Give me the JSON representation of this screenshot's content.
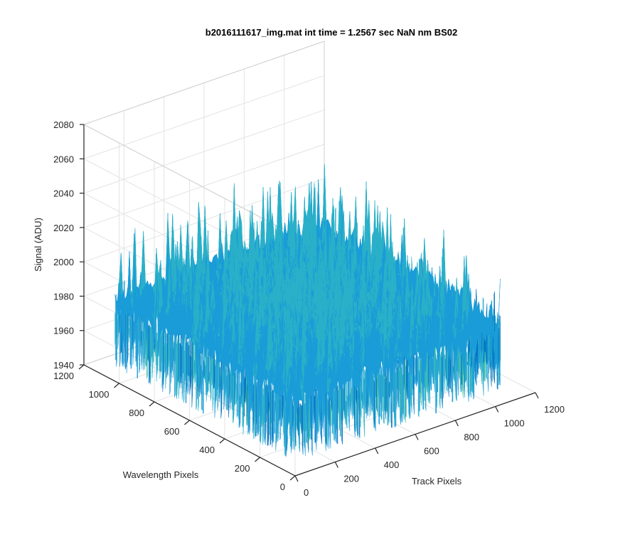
{
  "figure": {
    "title": "b2016111617_img.mat int time = 1.2567 sec  NaN nm BS02"
  },
  "chart_data": {
    "type": "surface",
    "title": "b2016111617_img.mat int time = 1.2567 sec  NaN nm BS02",
    "xlabel": "Track Pixels",
    "ylabel": "Wavelength Pixels",
    "zlabel": "Signal (ADU)",
    "xlim": [
      0,
      1200
    ],
    "ylim": [
      0,
      1200
    ],
    "zlim": [
      1940,
      2080
    ],
    "x_ticks": [
      0,
      200,
      400,
      600,
      800,
      1000,
      1200
    ],
    "y_ticks": [
      0,
      200,
      400,
      600,
      800,
      1000,
      1200
    ],
    "z_ticks": [
      1940,
      1960,
      1980,
      2000,
      2020,
      2040,
      2060,
      2080
    ],
    "x_tick_labels": [
      "0",
      "200",
      "400",
      "600",
      "800",
      "1000",
      "1200"
    ],
    "y_tick_labels": [
      "0",
      "200",
      "400",
      "600",
      "800",
      "1000",
      "1200"
    ],
    "z_tick_labels": [
      "1940",
      "1960",
      "1980",
      "2000",
      "2020",
      "2040",
      "2060",
      "2080"
    ],
    "data_extent": {
      "x": [
        0,
        1024
      ],
      "y": [
        0,
        1024
      ]
    },
    "signal_baseline": 1985,
    "signal_noise_range": [
      1948,
      2078
    ],
    "colormap": [
      "#0072bd",
      "#1a9cd8",
      "#2ab0c8",
      "#3cbd9d",
      "#8fc26a",
      "#d9c43c"
    ],
    "grid": true,
    "view": "3d-isometric"
  }
}
